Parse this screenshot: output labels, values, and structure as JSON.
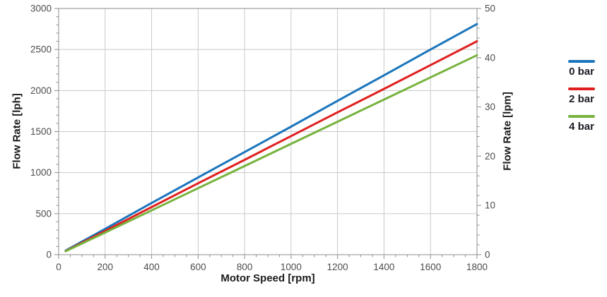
{
  "chart_data": {
    "type": "line",
    "title": "",
    "xlabel": "Motor Speed [rpm]",
    "ylabel_left": "Flow Rate [lph]",
    "ylabel_right": "Flow Rate [lpm]",
    "x": [
      30,
      200,
      400,
      600,
      800,
      1000,
      1200,
      1400,
      1600,
      1800
    ],
    "series": [
      {
        "name": "0 bar",
        "color": "#1b75bc",
        "values_lph": [
          50,
          315,
          630,
          940,
          1250,
          1560,
          1875,
          2185,
          2500,
          2810
        ]
      },
      {
        "name": "2 bar",
        "color": "#e02020",
        "values_lph": [
          45,
          290,
          580,
          870,
          1155,
          1445,
          1735,
          2020,
          2310,
          2600
        ]
      },
      {
        "name": "4 bar",
        "color": "#77b33e",
        "values_lph": [
          42,
          270,
          540,
          810,
          1080,
          1350,
          1620,
          1890,
          2160,
          2430
        ]
      }
    ],
    "x_axis": {
      "min": 0,
      "max": 1800,
      "major": 200,
      "minor": 50,
      "tick_labels": [
        "0",
        "200",
        "400",
        "600",
        "800",
        "1000",
        "1200",
        "1400",
        "1600",
        "1800"
      ]
    },
    "y_left": {
      "min": 0,
      "max": 3000,
      "major": 500,
      "minor": 100,
      "tick_labels": [
        "0",
        "500",
        "1000",
        "1500",
        "2000",
        "2500",
        "3000"
      ]
    },
    "y_right": {
      "min": 0,
      "max": 50,
      "major": 10,
      "minor": 2,
      "tick_labels": [
        "0",
        "10",
        "20",
        "30",
        "40",
        "50"
      ]
    },
    "grid": true,
    "legend_position": "right",
    "colors": {
      "grid": "#c9c9c9",
      "frame": "#8e8e8e",
      "tick_label": "#4d4d4d",
      "axis_title": "#1a1a1a"
    }
  }
}
